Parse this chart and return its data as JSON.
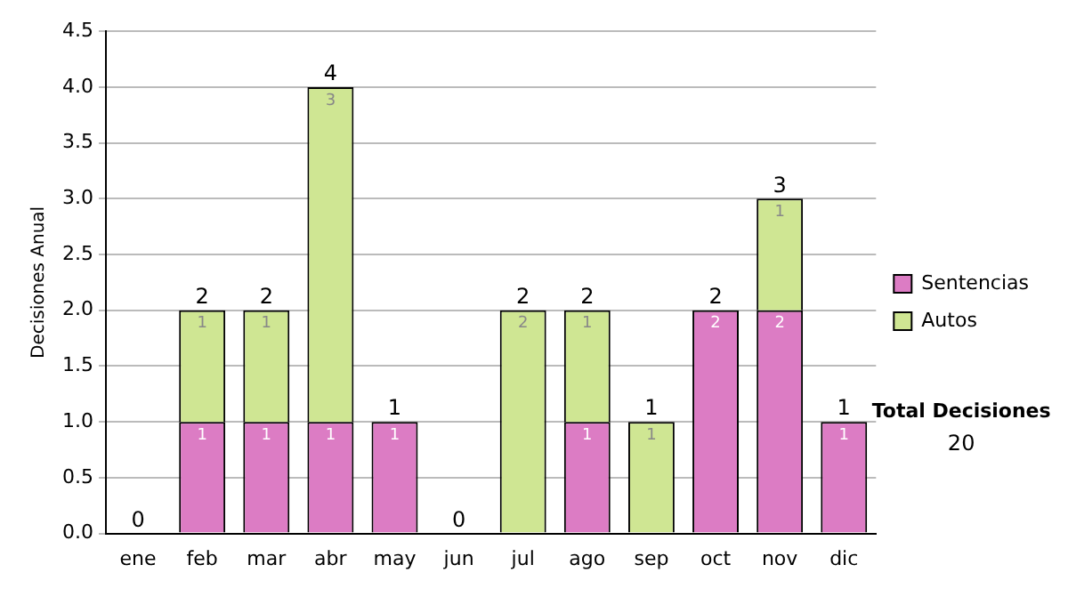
{
  "chart_data": {
    "type": "bar",
    "stacked": true,
    "categories": [
      "ene",
      "feb",
      "mar",
      "abr",
      "may",
      "jun",
      "jul",
      "ago",
      "sep",
      "oct",
      "nov",
      "dic"
    ],
    "series": [
      {
        "name": "Sentencias",
        "color": "#dc7cc4",
        "values": [
          0,
          1,
          1,
          1,
          1,
          0,
          0,
          1,
          0,
          2,
          2,
          1
        ],
        "value_labels": [
          null,
          "1",
          "1",
          "1",
          "1",
          null,
          null,
          "1",
          null,
          "2",
          "2",
          "1"
        ]
      },
      {
        "name": "Autos",
        "color": "#cfe693",
        "values": [
          0,
          1,
          1,
          3,
          0,
          0,
          2,
          1,
          1,
          0,
          1,
          0
        ],
        "value_labels": [
          null,
          "1",
          "1",
          "3",
          null,
          null,
          "2",
          "1",
          "1",
          null,
          "1",
          null
        ]
      }
    ],
    "totals": [
      "0",
      "2",
      "2",
      "4",
      "1",
      "0",
      "2",
      "2",
      "1",
      "2",
      "3",
      "1"
    ],
    "ylabel": "Decisiones Anual",
    "ylim": [
      0,
      4.5
    ],
    "yticks": [
      {
        "value": 0,
        "label": "0.0"
      },
      {
        "value": 0.5,
        "label": "0.5"
      },
      {
        "value": 1,
        "label": "1.0"
      },
      {
        "value": 1.5,
        "label": "1.5"
      },
      {
        "value": 2,
        "label": "2.0"
      },
      {
        "value": 2.5,
        "label": "2.5"
      },
      {
        "value": 3,
        "label": "3.0"
      },
      {
        "value": 3.5,
        "label": "3.5"
      },
      {
        "value": 4,
        "label": "4.0"
      },
      {
        "value": 4.5,
        "label": "4.5"
      }
    ],
    "grid": "y",
    "legend": "right",
    "annotations": [
      "Total Decisiones",
      "20"
    ]
  }
}
